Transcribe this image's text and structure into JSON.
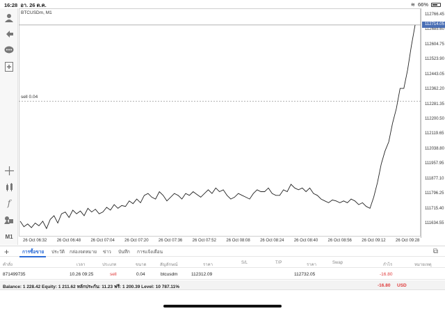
{
  "status": {
    "time": "16:28",
    "date": "อา. 26 ต.ค.",
    "battery": "66%"
  },
  "chart": {
    "symbol": "BTCUSDm, M1",
    "sell_label": "sell 0.04",
    "current_price": "112714.05",
    "price_ticks": [
      "112766.45",
      "112685.60",
      "112604.75",
      "112523.90",
      "112443.05",
      "112362.20",
      "112281.35",
      "112200.50",
      "112119.65",
      "112038.80",
      "111957.95",
      "111877.10",
      "111796.25",
      "111715.40",
      "111634.55"
    ],
    "time_ticks": [
      "26 Oct 06:32",
      "26 Oct 06:48",
      "26 Oct 07:04",
      "26 Oct 07:20",
      "26 Oct 07:36",
      "26 Oct 07:52",
      "26 Oct 08:08",
      "26 Oct 08:24",
      "26 Oct 08:40",
      "26 Oct 08:56",
      "26 Oct 09:12",
      "26 Oct 09:28"
    ],
    "sell_price": 112300,
    "series": [
      111650,
      111620,
      111635,
      111615,
      111640,
      111625,
      111650,
      111610,
      111660,
      111680,
      111640,
      111690,
      111700,
      111670,
      111710,
      111690,
      111705,
      111680,
      111720,
      111700,
      111715,
      111690,
      111700,
      111725,
      111710,
      111740,
      111720,
      111735,
      111730,
      111760,
      111745,
      111770,
      111750,
      111790,
      111800,
      111780,
      111770,
      111810,
      111790,
      111760,
      111780,
      111800,
      111790,
      111770,
      111800,
      111790,
      111810,
      111795,
      111780,
      111800,
      111820,
      111800,
      111830,
      111810,
      111820,
      111790,
      111770,
      111780,
      111800,
      111790,
      111780,
      111770,
      111800,
      111820,
      111810,
      111810,
      111830,
      111800,
      111790,
      111790,
      111820,
      111810,
      111850,
      111830,
      111820,
      111830,
      111810,
      111830,
      111800,
      111790,
      111770,
      111760,
      111750,
      111765,
      111760,
      111750,
      111760,
      111750,
      111770,
      111760,
      111740,
      111750,
      111730,
      111720,
      111780,
      111860,
      111960,
      112030,
      112080,
      112180,
      112260,
      112370,
      112370,
      112470,
      112600,
      112714
    ]
  },
  "tabs": {
    "items": [
      "การซื้อขาย",
      "ประวัติ",
      "กล่องจดหมาย",
      "ข่าว",
      "บันทึก",
      "การแจ้งเตือน"
    ]
  },
  "table": {
    "headers": [
      "คำสั่ง",
      "เวลา",
      "ประเภท",
      "ขนาด",
      "สัญลักษณ์",
      "ราคา",
      "S/L",
      "T/P",
      "ราคา",
      "Swap",
      "กำไร",
      "หมายเหตุ"
    ],
    "row": {
      "order": "871499735",
      "time": "10.26 09:25",
      "type": "sell",
      "size": "0.04",
      "symbol": "btcusdm",
      "open_price": "112312.09",
      "sl": "",
      "tp": "",
      "price": "112732.05",
      "swap": "",
      "profit": "-16.80",
      "comment": ""
    },
    "balance_text": "Balance: 1 228.42 Equity: 1 211.62 หลักประกัน: 11.23 ฟรี: 1 200.39 Level: 10 787.11%",
    "balance_profit": "-16.80",
    "currency": "USD"
  },
  "colors": {
    "accent": "#2b6bd6",
    "loss": "#e03a3a",
    "price_tag": "#4a6fb5"
  }
}
